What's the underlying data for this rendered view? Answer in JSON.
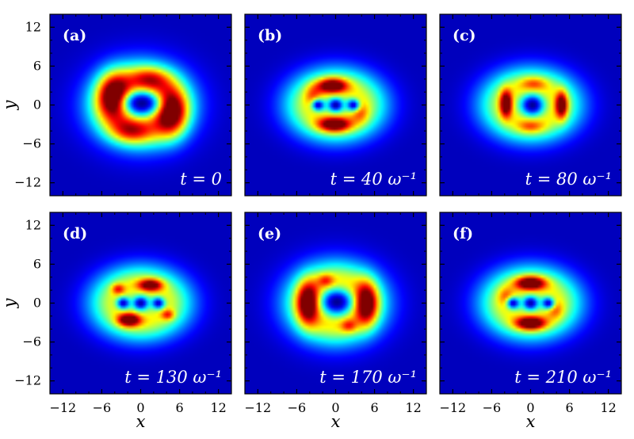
{
  "chart_data": {
    "type": "heatmap",
    "colormap": "jet",
    "xlabel": "x",
    "ylabel": "y",
    "xlim": [
      -14,
      14
    ],
    "ylim": [
      -14,
      14
    ],
    "ticks": [
      -12,
      -6,
      0,
      6,
      12
    ],
    "x_tick_labels": [
      "−12",
      "−6",
      "0",
      "6",
      "12"
    ],
    "y_tick_labels": [
      "12",
      "6",
      "0",
      "−6",
      "−12"
    ],
    "grid": false,
    "panels": [
      {
        "label": "(a)",
        "time": "t = 0",
        "features": {
          "ring": {
            "rx": 8.5,
            "ry": 7.0,
            "width": 3.2,
            "peak": 0.55
          },
          "blobs": [
            {
              "x": -4.2,
              "y": 1.5,
              "sx": 2.4,
              "sy": 3.4,
              "a": 0.55
            },
            {
              "x": 4.8,
              "y": -1.2,
              "sx": 2.4,
              "sy": 3.6,
              "a": 0.55
            },
            {
              "x": 1.5,
              "y": 4.0,
              "sx": 3.0,
              "sy": 1.8,
              "a": 0.3
            },
            {
              "x": -1.5,
              "y": -4.0,
              "sx": 3.0,
              "sy": 1.8,
              "a": 0.3
            }
          ],
          "holes": [
            {
              "x": 0.2,
              "y": 0.3,
              "sx": 2.6,
              "sy": 1.7,
              "a": 0.95
            }
          ]
        }
      },
      {
        "label": "(b)",
        "time": "t = 40 ω⁻¹",
        "features": {
          "ring": {
            "rx": 7.5,
            "ry": 5.5,
            "width": 3.0,
            "peak": 0.48
          },
          "blobs": [
            {
              "x": -0.5,
              "y": 3.0,
              "sx": 2.2,
              "sy": 1.1,
              "a": 0.6
            },
            {
              "x": -0.2,
              "y": -3.0,
              "sx": 2.4,
              "sy": 1.1,
              "a": 0.6
            },
            {
              "x": -3.5,
              "y": 1.5,
              "sx": 1.3,
              "sy": 1.6,
              "a": 0.2
            },
            {
              "x": 3.8,
              "y": -1.2,
              "sx": 1.3,
              "sy": 1.6,
              "a": 0.2
            }
          ],
          "holes": [
            {
              "x": -2.7,
              "y": 0.0,
              "sx": 1.0,
              "sy": 0.9,
              "a": 0.9
            },
            {
              "x": 0.0,
              "y": 0.0,
              "sx": 1.0,
              "sy": 0.9,
              "a": 0.9
            },
            {
              "x": 2.7,
              "y": 0.0,
              "sx": 1.0,
              "sy": 0.9,
              "a": 0.9
            }
          ]
        }
      },
      {
        "label": "(c)",
        "time": "t = 80 ω⁻¹",
        "features": {
          "ring": {
            "rx": 7.5,
            "ry": 5.5,
            "width": 3.0,
            "peak": 0.48
          },
          "blobs": [
            {
              "x": -3.8,
              "y": 0.2,
              "sx": 0.9,
              "sy": 2.0,
              "a": 0.6
            },
            {
              "x": 4.8,
              "y": 0.0,
              "sx": 0.9,
              "sy": 2.0,
              "a": 0.6
            },
            {
              "x": 0.5,
              "y": 3.3,
              "sx": 2.0,
              "sy": 1.0,
              "a": 0.22
            },
            {
              "x": 0.0,
              "y": -3.3,
              "sx": 2.0,
              "sy": 1.0,
              "a": 0.22
            }
          ],
          "holes": [
            {
              "x": 0.3,
              "y": 0.0,
              "sx": 1.6,
              "sy": 1.5,
              "a": 0.95
            }
          ]
        }
      },
      {
        "label": "(d)",
        "time": "t = 130 ω⁻¹",
        "features": {
          "ring": {
            "rx": 7.5,
            "ry": 5.5,
            "width": 3.0,
            "peak": 0.48
          },
          "blobs": [
            {
              "x": 1.5,
              "y": 2.8,
              "sx": 1.8,
              "sy": 0.9,
              "a": 0.55
            },
            {
              "x": -1.8,
              "y": -2.6,
              "sx": 1.7,
              "sy": 1.0,
              "a": 0.62
            },
            {
              "x": -3.5,
              "y": 2.2,
              "sx": 1.0,
              "sy": 0.8,
              "a": 0.3
            },
            {
              "x": 4.2,
              "y": -1.8,
              "sx": 1.0,
              "sy": 0.8,
              "a": 0.3
            }
          ],
          "holes": [
            {
              "x": -2.7,
              "y": 0.0,
              "sx": 1.0,
              "sy": 0.9,
              "a": 0.9
            },
            {
              "x": 0.0,
              "y": 0.0,
              "sx": 1.0,
              "sy": 0.9,
              "a": 0.9
            },
            {
              "x": 2.7,
              "y": 0.0,
              "sx": 1.0,
              "sy": 0.9,
              "a": 0.9
            }
          ]
        }
      },
      {
        "label": "(e)",
        "time": "t = 170 ω⁻¹",
        "features": {
          "ring": {
            "rx": 8.0,
            "ry": 6.5,
            "width": 3.2,
            "peak": 0.5
          },
          "blobs": [
            {
              "x": -4.3,
              "y": 0.0,
              "sx": 1.7,
              "sy": 3.2,
              "a": 0.6
            },
            {
              "x": 4.8,
              "y": 0.0,
              "sx": 1.7,
              "sy": 3.2,
              "a": 0.6
            },
            {
              "x": -1.5,
              "y": 3.5,
              "sx": 1.2,
              "sy": 1.0,
              "a": 0.25
            },
            {
              "x": 2.0,
              "y": -3.5,
              "sx": 1.2,
              "sy": 1.0,
              "a": 0.25
            }
          ],
          "holes": [
            {
              "x": 0.2,
              "y": 0.2,
              "sx": 2.2,
              "sy": 1.8,
              "a": 0.95
            }
          ]
        }
      },
      {
        "label": "(f)",
        "time": "t = 210 ω⁻¹",
        "features": {
          "ring": {
            "rx": 7.5,
            "ry": 5.5,
            "width": 3.0,
            "peak": 0.48
          },
          "blobs": [
            {
              "x": 0.0,
              "y": 3.1,
              "sx": 2.2,
              "sy": 1.0,
              "a": 0.65
            },
            {
              "x": 0.0,
              "y": -3.1,
              "sx": 2.2,
              "sy": 1.0,
              "a": 0.65
            },
            {
              "x": -3.8,
              "y": 1.0,
              "sx": 1.2,
              "sy": 1.4,
              "a": 0.2
            },
            {
              "x": 3.8,
              "y": -1.0,
              "sx": 1.2,
              "sy": 1.4,
              "a": 0.2
            }
          ],
          "holes": [
            {
              "x": -2.7,
              "y": 0.0,
              "sx": 1.0,
              "sy": 0.9,
              "a": 0.9
            },
            {
              "x": 0.0,
              "y": 0.0,
              "sx": 1.0,
              "sy": 0.9,
              "a": 0.9
            },
            {
              "x": 2.7,
              "y": 0.0,
              "sx": 1.0,
              "sy": 0.9,
              "a": 0.9
            }
          ]
        }
      }
    ]
  }
}
